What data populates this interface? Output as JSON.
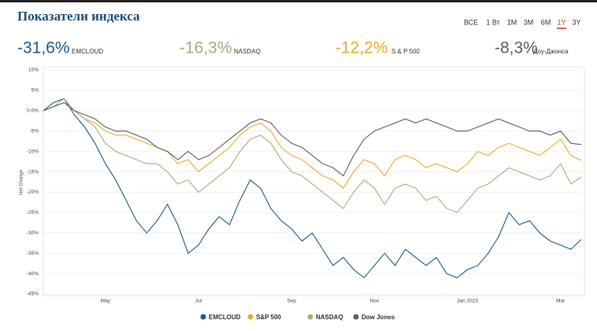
{
  "header": {
    "title": "Показатели индекса",
    "periods": [
      "ВСЕ",
      "1 Вт",
      "1M",
      "3M",
      "6M",
      "1Y",
      "3Y"
    ],
    "active_period": 5,
    "stats": [
      {
        "change": "-31,6%",
        "name": "EMCLOUD",
        "color": "#1d5b8a"
      },
      {
        "change": "-16,3%",
        "name": "NASDAQ",
        "color": "#a3b07c"
      },
      {
        "change": "-12,2%",
        "name": "S & P 500",
        "color": "#e6ad2e"
      },
      {
        "change": "-8,3%",
        "name": "Доу-Джонса",
        "color": "#5e5e5e"
      }
    ]
  },
  "chart_data": {
    "type": "line",
    "y_label": "Net Change",
    "categories": [
      null,
      null,
      null,
      null,
      null,
      null,
      "May",
      null,
      null,
      null,
      null,
      null,
      null,
      null,
      null,
      "Jul",
      null,
      null,
      null,
      null,
      null,
      null,
      null,
      null,
      "Sep",
      null,
      null,
      null,
      null,
      null,
      null,
      null,
      "Nov",
      null,
      null,
      null,
      null,
      null,
      null,
      null,
      null,
      "Jan 2023",
      null,
      null,
      null,
      null,
      null,
      null,
      null,
      null,
      "Mar",
      null,
      null
    ],
    "ylim": [
      -45,
      10
    ],
    "yticks": [
      {
        "value": 10,
        "label": "10%"
      },
      {
        "value": 5,
        "label": "5%"
      },
      {
        "value": 0,
        "label": "0.0%"
      },
      {
        "value": -5,
        "label": "-5%"
      },
      {
        "value": -10,
        "label": "-10%"
      },
      {
        "value": -15,
        "label": "-15%"
      },
      {
        "value": -20,
        "label": "-20%"
      },
      {
        "value": -25,
        "label": "-25%"
      },
      {
        "value": -30,
        "label": "-30%"
      },
      {
        "value": -35,
        "label": "-35%"
      },
      {
        "value": -40,
        "label": "-40%"
      },
      {
        "value": -45,
        "label": "-45%"
      }
    ],
    "grid": true,
    "legend": "bottom",
    "series": [
      {
        "name": "EMCLOUD",
        "color": "#1d5b8a",
        "values": [
          0,
          2,
          3,
          -1,
          -4,
          -8,
          -13,
          -17,
          -22,
          -27,
          -30,
          -27,
          -23,
          -28,
          -35,
          -33,
          -29,
          -26,
          -28,
          -22,
          -17,
          -19,
          -24,
          -27,
          -29,
          -32,
          -30,
          -34,
          -38,
          -36,
          -39,
          -41,
          -38,
          -35,
          -38,
          -34,
          -36,
          -38,
          -36,
          -40,
          -41,
          -39,
          -38,
          -35,
          -31,
          -25,
          -28,
          -27,
          -30,
          -32,
          -33,
          -34,
          -31.6
        ]
      },
      {
        "name": "S&P 500",
        "color": "#e6ad2e",
        "values": [
          0,
          1,
          2,
          0,
          -2,
          -3,
          -5,
          -6,
          -6,
          -7,
          -8,
          -9,
          -10,
          -13,
          -12,
          -15,
          -13,
          -11,
          -9,
          -6,
          -4,
          -3,
          -5,
          -9,
          -11,
          -12,
          -14,
          -16,
          -17,
          -19,
          -15,
          -12,
          -13,
          -16,
          -12,
          -11,
          -12,
          -14,
          -13,
          -14,
          -15,
          -13,
          -10,
          -11,
          -9,
          -8,
          -9,
          -10,
          -11,
          -9,
          -7,
          -11,
          -12.2
        ]
      },
      {
        "name": "NASDAQ",
        "color": "#a3b07c",
        "values": [
          0,
          1,
          3,
          0,
          -2,
          -4,
          -8,
          -10,
          -11,
          -12,
          -13,
          -13,
          -15,
          -18,
          -17,
          -20,
          -18,
          -16,
          -14,
          -10,
          -7,
          -6,
          -8,
          -12,
          -15,
          -16,
          -18,
          -20,
          -22,
          -24,
          -20,
          -17,
          -19,
          -23,
          -19,
          -18,
          -19,
          -22,
          -21,
          -24,
          -25,
          -22,
          -19,
          -18,
          -16,
          -14,
          -15,
          -16,
          -17,
          -16,
          -13,
          -18,
          -16.3
        ]
      },
      {
        "name": "Dow Jones",
        "color": "#5e5e5e",
        "values": [
          0,
          1,
          2,
          0,
          -1,
          -2,
          -4,
          -5,
          -5,
          -6,
          -7,
          -9,
          -10,
          -12,
          -10,
          -12,
          -11,
          -9,
          -7,
          -5,
          -3,
          -2,
          -3,
          -6,
          -8,
          -9,
          -11,
          -13,
          -14,
          -16,
          -11,
          -7,
          -5,
          -4,
          -3,
          -2,
          -3,
          -2,
          -3,
          -4,
          -5,
          -5,
          -4,
          -3,
          -2,
          -3,
          -4,
          -5,
          -5,
          -6,
          -5,
          -8,
          -8.3
        ]
      }
    ]
  }
}
